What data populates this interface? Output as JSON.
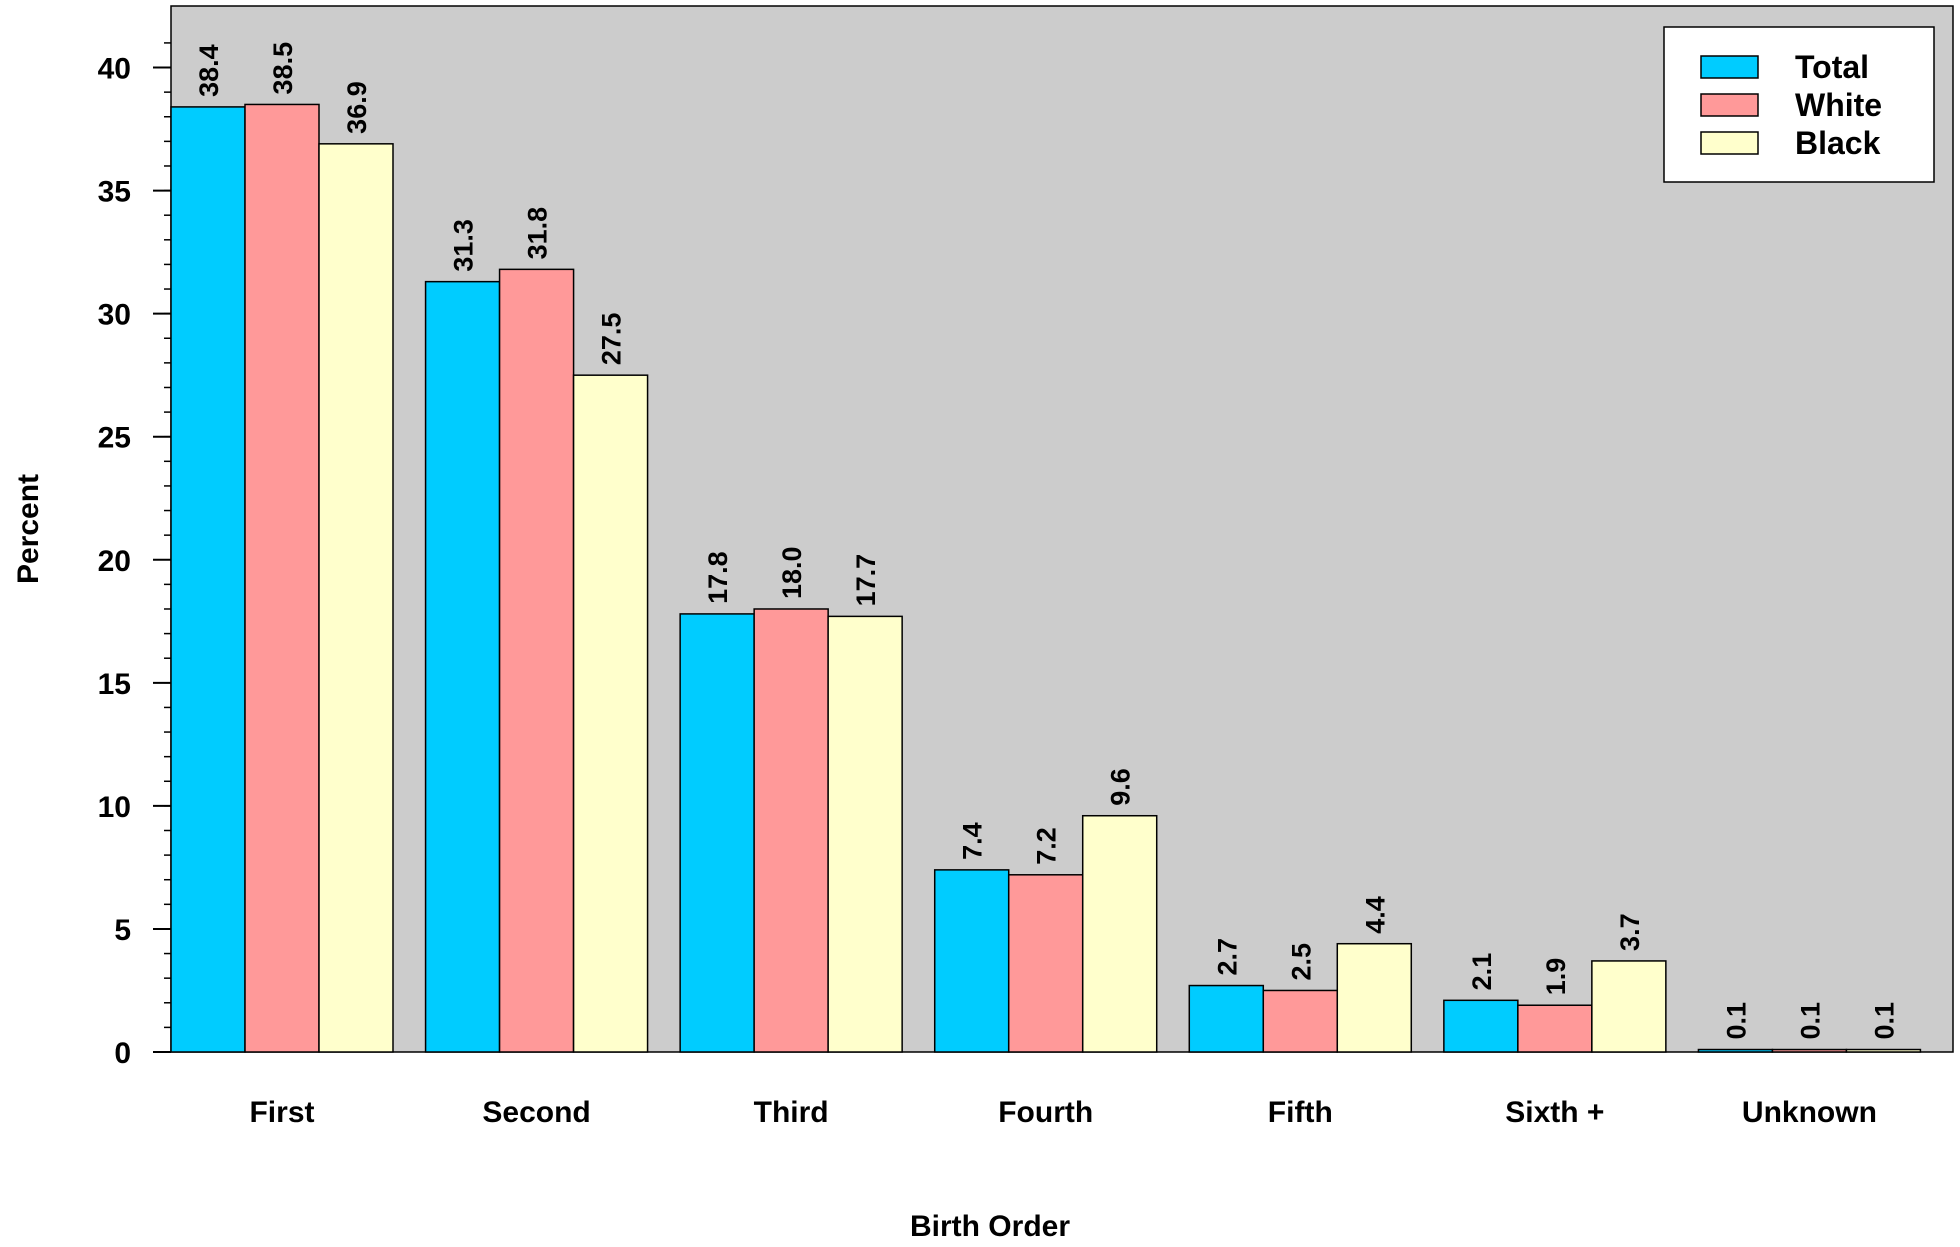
{
  "chart_data": {
    "type": "bar",
    "title": "",
    "xlabel": "Birth Order",
    "ylabel": "Percent",
    "ylim": [
      0,
      42.5
    ],
    "yticks": [
      0,
      5,
      10,
      15,
      20,
      25,
      30,
      35,
      40
    ],
    "ytick_labels": [
      "0",
      "5",
      "10",
      "15",
      "20",
      "25",
      "30",
      "35",
      "40"
    ],
    "y_minor_step": 1,
    "grid": false,
    "legend_position": "top-right",
    "plot_background": "#cccccc",
    "categories": [
      "First",
      "Second",
      "Third",
      "Fourth",
      "Fifth",
      "Sixth +",
      "Unknown"
    ],
    "series": [
      {
        "name": "Total",
        "color": "#00ccff",
        "values": [
          38.4,
          31.3,
          17.8,
          7.4,
          2.7,
          2.1,
          0.1
        ],
        "labels": [
          "38.4",
          "31.3",
          "17.8",
          "7.4",
          "2.7",
          "2.1",
          "0.1"
        ]
      },
      {
        "name": "White",
        "color": "#ff9999",
        "values": [
          38.5,
          31.8,
          18.0,
          7.2,
          2.5,
          1.9,
          0.1
        ],
        "labels": [
          "38.5",
          "31.8",
          "18.0",
          "7.2",
          "2.5",
          "1.9",
          "0.1"
        ]
      },
      {
        "name": "Black",
        "color": "#ffffcc",
        "values": [
          36.9,
          27.5,
          17.7,
          9.6,
          4.4,
          3.7,
          0.1
        ],
        "labels": [
          "36.9",
          "27.5",
          "17.7",
          "9.6",
          "4.4",
          "3.7",
          "0.1"
        ]
      }
    ]
  }
}
